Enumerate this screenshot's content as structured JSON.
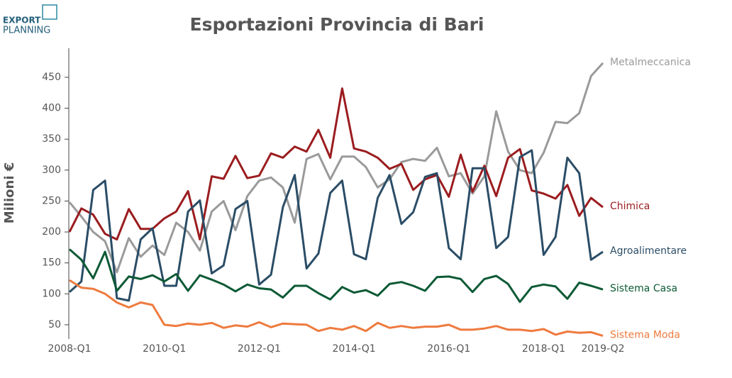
{
  "logo": {
    "line1": "EXPORT",
    "line2": "PLANNING"
  },
  "chart_data": {
    "type": "line",
    "title": "Esportazioni Provincia di Bari",
    "y_label": "Milioni €",
    "categories": [
      "2008-Q1",
      null,
      null,
      null,
      null,
      null,
      null,
      null,
      "2010-Q1",
      null,
      null,
      null,
      null,
      null,
      null,
      null,
      "2012-Q1",
      null,
      null,
      null,
      null,
      null,
      null,
      null,
      "2014-Q1",
      null,
      null,
      null,
      null,
      null,
      null,
      null,
      "2016-Q1",
      null,
      null,
      null,
      null,
      null,
      null,
      null,
      "2018-Q1",
      null,
      null,
      null,
      null,
      "2019-Q2"
    ],
    "ylim": [
      27,
      497
    ],
    "yticks": [
      50,
      100,
      150,
      200,
      250,
      300,
      350,
      400,
      450
    ],
    "series": [
      {
        "name": "Metalmeccanica",
        "color": "#9a9a9a",
        "values": [
          248,
          225,
          200,
          185,
          135,
          190,
          160,
          178,
          163,
          215,
          200,
          170,
          233,
          250,
          203,
          258,
          283,
          288,
          272,
          215,
          318,
          326,
          285,
          322,
          322,
          305,
          272,
          285,
          313,
          318,
          315,
          336,
          290,
          295,
          262,
          290,
          395,
          330,
          300,
          295,
          328,
          378,
          376,
          392,
          452,
          473
        ]
      },
      {
        "name": "Chimica",
        "color": "#9b1c1f",
        "values": [
          200,
          238,
          228,
          197,
          188,
          237,
          205,
          205,
          222,
          233,
          266,
          188,
          290,
          286,
          323,
          287,
          291,
          327,
          320,
          338,
          330,
          365,
          320,
          432,
          335,
          330,
          320,
          302,
          310,
          268,
          285,
          292,
          257,
          325,
          265,
          307,
          258,
          320,
          334,
          267,
          262,
          254,
          276,
          226,
          255,
          240
        ]
      },
      {
        "name": "Agroalimentare",
        "color": "#2b4d66",
        "values": [
          103,
          120,
          268,
          283,
          93,
          89,
          188,
          206,
          113,
          113,
          233,
          251,
          133,
          146,
          237,
          250,
          115,
          131,
          240,
          292,
          141,
          165,
          263,
          283,
          164,
          156,
          255,
          292,
          213,
          232,
          289,
          295,
          174,
          156,
          303,
          303,
          174,
          192,
          321,
          332,
          163,
          192,
          320,
          295,
          155,
          168
        ]
      },
      {
        "name": "Sistema Casa",
        "color": "#0d5a36",
        "values": [
          172,
          155,
          125,
          168,
          105,
          128,
          124,
          130,
          120,
          132,
          105,
          130,
          123,
          115,
          104,
          115,
          109,
          107,
          94,
          113,
          113,
          101,
          91,
          111,
          102,
          106,
          97,
          116,
          119,
          113,
          105,
          127,
          128,
          124,
          103,
          124,
          129,
          116,
          87,
          111,
          115,
          112,
          92,
          118,
          113,
          107
        ]
      },
      {
        "name": "Sistema Moda",
        "color": "#ee7a3e",
        "values": [
          122,
          110,
          108,
          100,
          86,
          78,
          86,
          82,
          50,
          48,
          52,
          50,
          53,
          45,
          49,
          47,
          54,
          46,
          52,
          51,
          50,
          40,
          45,
          42,
          48,
          40,
          53,
          45,
          48,
          45,
          47,
          47,
          50,
          42,
          42,
          44,
          48,
          42,
          42,
          40,
          43,
          34,
          39,
          37,
          38,
          32
        ]
      }
    ]
  }
}
